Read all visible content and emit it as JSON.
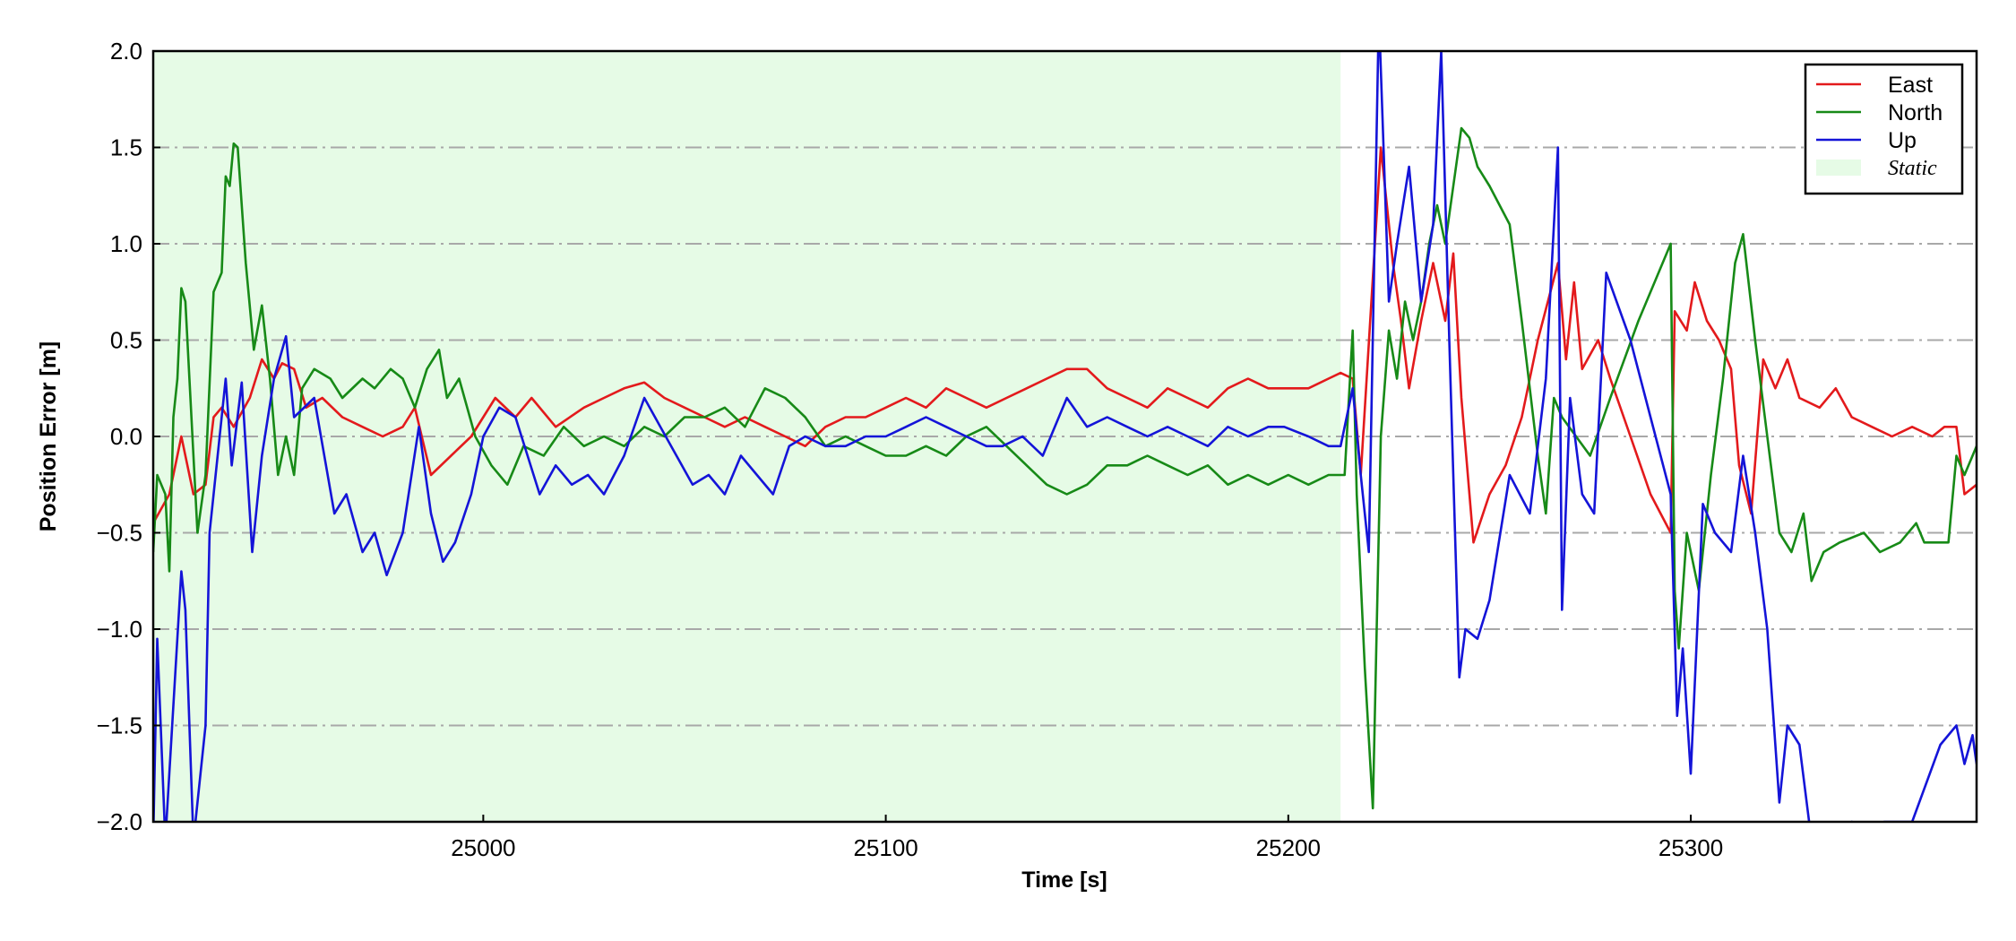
{
  "chart_data": {
    "type": "line",
    "xlabel": "Time [s]",
    "ylabel": "Position Error [m]",
    "xlim": [
      24918,
      25371
    ],
    "ylim": [
      -2.0,
      2.0
    ],
    "xticks": [
      25000,
      25100,
      25200,
      25300
    ],
    "yticks": [
      {
        "value": -2.0,
        "label": "−2.0"
      },
      {
        "value": -1.5,
        "label": "−1.5"
      },
      {
        "value": -1.0,
        "label": "−1.0"
      },
      {
        "value": -0.5,
        "label": "−0.5"
      },
      {
        "value": 0.0,
        "label": "0.0"
      },
      0.5,
      {
        "value": 1.0,
        "label": "1.0"
      },
      1.5,
      {
        "value": 2.0,
        "label": "2.0"
      }
    ],
    "grid": true,
    "legend": "upper right",
    "span": [
      24918,
      25213
    ],
    "span_label": "Static",
    "span_color": "#e6fbe6",
    "series": [
      {
        "name": "East",
        "color": "#e31a1c",
        "x": [
          24918,
          24922,
          24925,
          24928,
          24931,
          24933,
          24935,
          24938,
          24942,
          24945,
          24948,
          24950,
          24953,
          24956,
          24960,
          24965,
          24970,
          24975,
          24980,
          24983,
          24987,
          24992,
          24997,
          25003,
          25008,
          25012,
          25018,
          25025,
          25030,
          25035,
          25040,
          25045,
          25050,
          25055,
          25060,
          25065,
          25070,
          25075,
          25080,
          25085,
          25090,
          25095,
          25100,
          25105,
          25110,
          25115,
          25120,
          25125,
          25130,
          25135,
          25140,
          25145,
          25150,
          25155,
          25160,
          25165,
          25170,
          25175,
          25180,
          25185,
          25190,
          25195,
          25200,
          25205,
          25210,
          25213,
          25216,
          25218,
          25223,
          25226,
          25228,
          25230,
          25233,
          25236,
          25239,
          25241,
          25243,
          25245,
          25246,
          25250,
          25254,
          25258,
          25262,
          25267,
          25269,
          25271,
          25273,
          25277,
          25280,
          25285,
          25290,
          25295,
          25296,
          25299,
          25301,
          25304,
          25307,
          25310,
          25312,
          25315,
          25318,
          25321,
          25324,
          25327,
          25332,
          25336,
          25340,
          25345,
          25350,
          25355,
          25360,
          25363,
          25366,
          25368,
          25371
        ],
        "values": [
          -0.45,
          -0.3,
          0.0,
          -0.3,
          -0.25,
          0.1,
          0.15,
          0.05,
          0.2,
          0.4,
          0.3,
          0.38,
          0.35,
          0.15,
          0.2,
          0.1,
          0.05,
          0.0,
          0.05,
          0.15,
          -0.2,
          -0.1,
          0.0,
          0.2,
          0.1,
          0.2,
          0.05,
          0.15,
          0.2,
          0.25,
          0.28,
          0.2,
          0.15,
          0.1,
          0.05,
          0.1,
          0.05,
          0.0,
          -0.05,
          0.05,
          0.1,
          0.1,
          0.15,
          0.2,
          0.15,
          0.25,
          0.2,
          0.15,
          0.2,
          0.25,
          0.3,
          0.35,
          0.35,
          0.25,
          0.2,
          0.15,
          0.25,
          0.2,
          0.15,
          0.25,
          0.3,
          0.25,
          0.25,
          0.25,
          0.3,
          0.33,
          0.3,
          -0.2,
          1.5,
          0.9,
          0.6,
          0.25,
          0.6,
          0.9,
          0.6,
          0.95,
          0.2,
          -0.3,
          -0.55,
          -0.3,
          -0.15,
          0.1,
          0.5,
          0.9,
          0.4,
          0.8,
          0.35,
          0.5,
          0.3,
          0.0,
          -0.3,
          -0.5,
          0.65,
          0.55,
          0.8,
          0.6,
          0.5,
          0.35,
          -0.15,
          -0.4,
          0.4,
          0.25,
          0.4,
          0.2,
          0.15,
          0.25,
          0.1,
          0.05,
          0.0,
          0.05,
          0.0,
          0.05,
          0.05,
          -0.3,
          -0.25
        ]
      },
      {
        "name": "North",
        "color": "#178a17",
        "x": [
          24918,
          24919,
          24921,
          24922,
          24923,
          24924,
          24925,
          24926,
          24927,
          24929,
          24931,
          24933,
          24935,
          24936,
          24937,
          24938,
          24939,
          24941,
          24943,
          24945,
          24947,
          24949,
          24951,
          24953,
          24955,
          24958,
          24962,
          24965,
          24970,
          24973,
          24977,
          24980,
          24983,
          24986,
          24989,
          24991,
          24994,
          24998,
          25002,
          25006,
          25010,
          25015,
          25020,
          25025,
          25030,
          25035,
          25040,
          25045,
          25050,
          25055,
          25060,
          25065,
          25070,
          25075,
          25080,
          25085,
          25090,
          25095,
          25100,
          25105,
          25110,
          25115,
          25120,
          25125,
          25130,
          25135,
          25140,
          25145,
          25150,
          25155,
          25160,
          25165,
          25170,
          25175,
          25180,
          25185,
          25190,
          25195,
          25200,
          25205,
          25210,
          25214,
          25216,
          25217,
          25219,
          25221,
          25223,
          25225,
          25227,
          25229,
          25231,
          25233,
          25235,
          25237,
          25239,
          25241,
          25243,
          25245,
          25247,
          25250,
          25255,
          25258,
          25262,
          25264,
          25266,
          25268,
          25275,
          25280,
          25287,
          25295,
          25296,
          25297,
          25299,
          25302,
          25305,
          25308,
          25311,
          25313,
          25316,
          25319,
          25322,
          25325,
          25328,
          25330,
          25333,
          25337,
          25343,
          25347,
          25352,
          25356,
          25358,
          25364,
          25366,
          25368,
          25371
        ],
        "values": [
          -0.6,
          -0.2,
          -0.3,
          -0.7,
          0.1,
          0.3,
          0.77,
          0.7,
          0.3,
          -0.5,
          -0.2,
          0.75,
          0.85,
          1.35,
          1.3,
          1.52,
          1.5,
          0.9,
          0.45,
          0.68,
          0.3,
          -0.2,
          0.0,
          -0.2,
          0.25,
          0.35,
          0.3,
          0.2,
          0.3,
          0.25,
          0.35,
          0.3,
          0.15,
          0.35,
          0.45,
          0.2,
          0.3,
          0.0,
          -0.15,
          -0.25,
          -0.05,
          -0.1,
          0.05,
          -0.05,
          0.0,
          -0.05,
          0.05,
          0.0,
          0.1,
          0.1,
          0.15,
          0.05,
          0.25,
          0.2,
          0.1,
          -0.05,
          0.0,
          -0.05,
          -0.1,
          -0.1,
          -0.05,
          -0.1,
          0.0,
          0.05,
          -0.05,
          -0.15,
          -0.25,
          -0.3,
          -0.25,
          -0.15,
          -0.15,
          -0.1,
          -0.15,
          -0.2,
          -0.15,
          -0.25,
          -0.2,
          -0.25,
          -0.2,
          -0.25,
          -0.2,
          -0.2,
          0.55,
          -0.3,
          -1.2,
          -1.93,
          0.0,
          0.55,
          0.3,
          0.7,
          0.5,
          0.7,
          1.0,
          1.2,
          1.0,
          1.3,
          1.6,
          1.55,
          1.4,
          1.3,
          1.1,
          0.6,
          -0.1,
          -0.4,
          0.2,
          0.1,
          -0.1,
          0.2,
          0.6,
          1.0,
          -0.8,
          -1.1,
          -0.5,
          -0.8,
          -0.2,
          0.3,
          0.9,
          1.05,
          0.5,
          0.0,
          -0.5,
          -0.6,
          -0.4,
          -0.75,
          -0.6,
          -0.55,
          -0.5,
          -0.6,
          -0.55,
          -0.45,
          -0.55,
          -0.55,
          -0.1,
          -0.2,
          -0.05
        ]
      },
      {
        "name": "Up",
        "color": "#1414d8",
        "x": [
          24918,
          24919,
          24921,
          24925,
          24926,
          24928,
          24931,
          24932,
          24934,
          24936,
          24937.5,
          24940,
          24942.6,
          24945,
          24948,
          24951,
          24953,
          24958,
          24963,
          24966,
          24970,
          24973,
          24976,
          24980,
          24984,
          24987,
          24990,
          24993,
          24997,
          25000,
          25004,
          25008,
          25011,
          25014,
          25018,
          25022,
          25026,
          25030,
          25035,
          25040,
          25044,
          25048,
          25052,
          25056,
          25060,
          25064,
          25068,
          25072,
          25076,
          25080,
          25085,
          25090,
          25095,
          25100,
          25105,
          25110,
          25115,
          25120,
          25125,
          25129,
          25134,
          25139,
          25145,
          25150,
          25155,
          25160,
          25165,
          25170,
          25175,
          25180,
          25185,
          25190,
          25195,
          25199,
          25205,
          25210,
          25213,
          25216,
          25218,
          25220,
          25222.5,
          25225,
          25227,
          25230,
          25233,
          25236,
          25238,
          25240,
          25242.5,
          25244,
          25247,
          25250,
          25255,
          25260,
          25264,
          25267,
          25268,
          25270,
          25273,
          25276,
          25279,
          25285,
          25290,
          25295,
          25296.6,
          25298,
          25300,
          25303,
          25306,
          25310,
          25313,
          25316,
          25319,
          25322,
          25324,
          25327,
          25330,
          25335,
          25340,
          25343,
          25348,
          25355,
          25362,
          25366,
          25368,
          25370,
          25371
        ],
        "values": [
          -2.1,
          -1.05,
          -2.1,
          -0.7,
          -0.9,
          -2.1,
          -1.5,
          -0.5,
          -0.1,
          0.3,
          -0.15,
          0.28,
          -0.6,
          -0.1,
          0.3,
          0.52,
          0.1,
          0.2,
          -0.4,
          -0.3,
          -0.6,
          -0.5,
          -0.72,
          -0.5,
          0.05,
          -0.4,
          -0.65,
          -0.55,
          -0.3,
          0.0,
          0.15,
          0.1,
          -0.1,
          -0.3,
          -0.15,
          -0.25,
          -0.2,
          -0.3,
          -0.1,
          0.2,
          0.05,
          -0.1,
          -0.25,
          -0.2,
          -0.3,
          -0.1,
          -0.2,
          -0.3,
          -0.05,
          0.0,
          -0.05,
          -0.05,
          0.0,
          0.0,
          0.05,
          0.1,
          0.05,
          0.0,
          -0.05,
          -0.05,
          0.0,
          -0.1,
          0.2,
          0.05,
          0.1,
          0.05,
          0.0,
          0.05,
          0.0,
          -0.05,
          0.05,
          0.0,
          0.05,
          0.05,
          0.0,
          -0.05,
          -0.05,
          0.25,
          -0.2,
          -0.6,
          2.2,
          0.7,
          1.0,
          1.4,
          0.7,
          1.1,
          2.0,
          0.5,
          -1.25,
          -1.0,
          -1.05,
          -0.85,
          -0.2,
          -0.4,
          0.3,
          1.5,
          -0.9,
          0.2,
          -0.3,
          -0.4,
          0.85,
          0.5,
          0.1,
          -0.3,
          -1.45,
          -1.1,
          -1.75,
          -0.35,
          -0.5,
          -0.6,
          -0.1,
          -0.5,
          -1.0,
          -1.9,
          -1.5,
          -1.6,
          -2.1,
          -2.05,
          -2.0,
          -2.1,
          -2.0,
          -2.0,
          -1.6,
          -1.5,
          -1.7,
          -1.55,
          -1.7
        ]
      }
    ]
  }
}
